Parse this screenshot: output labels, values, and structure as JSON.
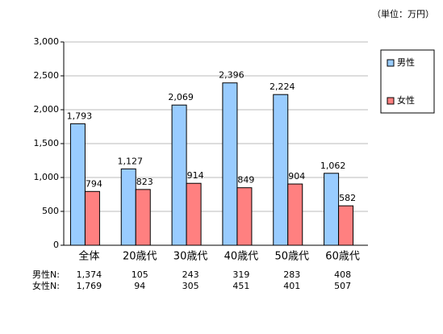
{
  "chart_data": {
    "type": "bar",
    "unit_note": "（単位：万円）",
    "categories": [
      "全体",
      "20歳代",
      "30歳代",
      "40歳代",
      "50歳代",
      "60歳代"
    ],
    "series": [
      {
        "name": "男性",
        "color": "#99ccff",
        "values": [
          1793,
          1127,
          2069,
          2396,
          2224,
          1062
        ],
        "value_labels": [
          "1,793",
          "1,127",
          "2,069",
          "2,396",
          "2,224",
          "1,062"
        ]
      },
      {
        "name": "女性",
        "color": "#ff8080",
        "values": [
          794,
          823,
          914,
          849,
          904,
          582
        ]
      }
    ],
    "ylim": [
      0,
      3000
    ],
    "yticks": [
      0,
      500,
      {
        "value": 1000,
        "label": "1,000"
      },
      {
        "value": 1500,
        "label": "1,500"
      },
      {
        "value": 2000,
        "label": "2,000"
      },
      {
        "value": 2500,
        "label": "2,500"
      },
      {
        "value": 3000,
        "label": "3,000"
      }
    ],
    "grid": true,
    "legend": "right",
    "sample_sizes": [
      {
        "label": "男性N:",
        "values": [
          "1,374",
          "105",
          "243",
          "319",
          "283",
          "408"
        ]
      },
      {
        "label": "女性N:",
        "values": [
          "1,769",
          "94",
          "305",
          "451",
          "401",
          "507"
        ]
      }
    ]
  }
}
